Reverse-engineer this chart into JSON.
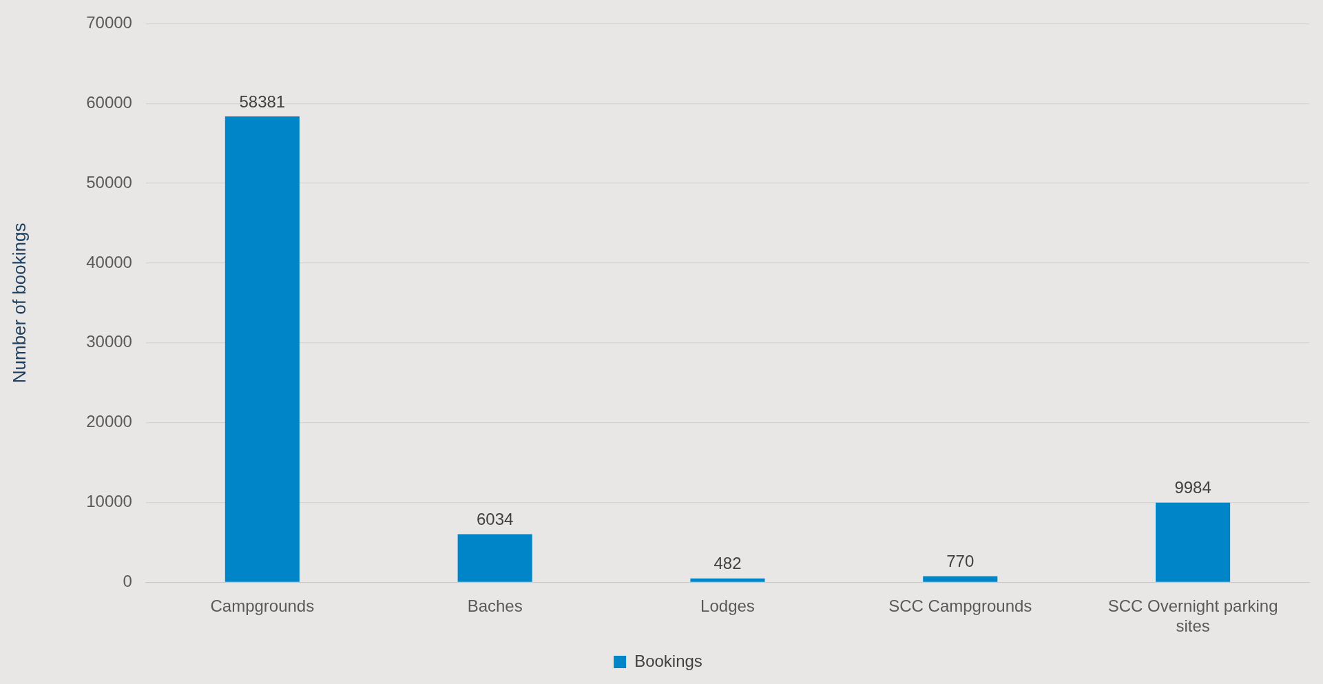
{
  "chart_data": {
    "type": "bar",
    "ylabel": "Number of bookings",
    "categories": [
      "Campgrounds",
      "Baches",
      "Lodges",
      "SCC Campgrounds",
      "SCC Overnight parking sites"
    ],
    "series": [
      {
        "name": "Bookings",
        "color": "#0085c8",
        "values": [
          58381,
          6034,
          482,
          770,
          9984
        ]
      }
    ],
    "ylim": [
      0,
      70000
    ],
    "yticks": [
      0,
      10000,
      20000,
      30000,
      40000,
      50000,
      60000,
      70000
    ],
    "grid": "y",
    "legend": "bottom",
    "data_labels": true
  }
}
